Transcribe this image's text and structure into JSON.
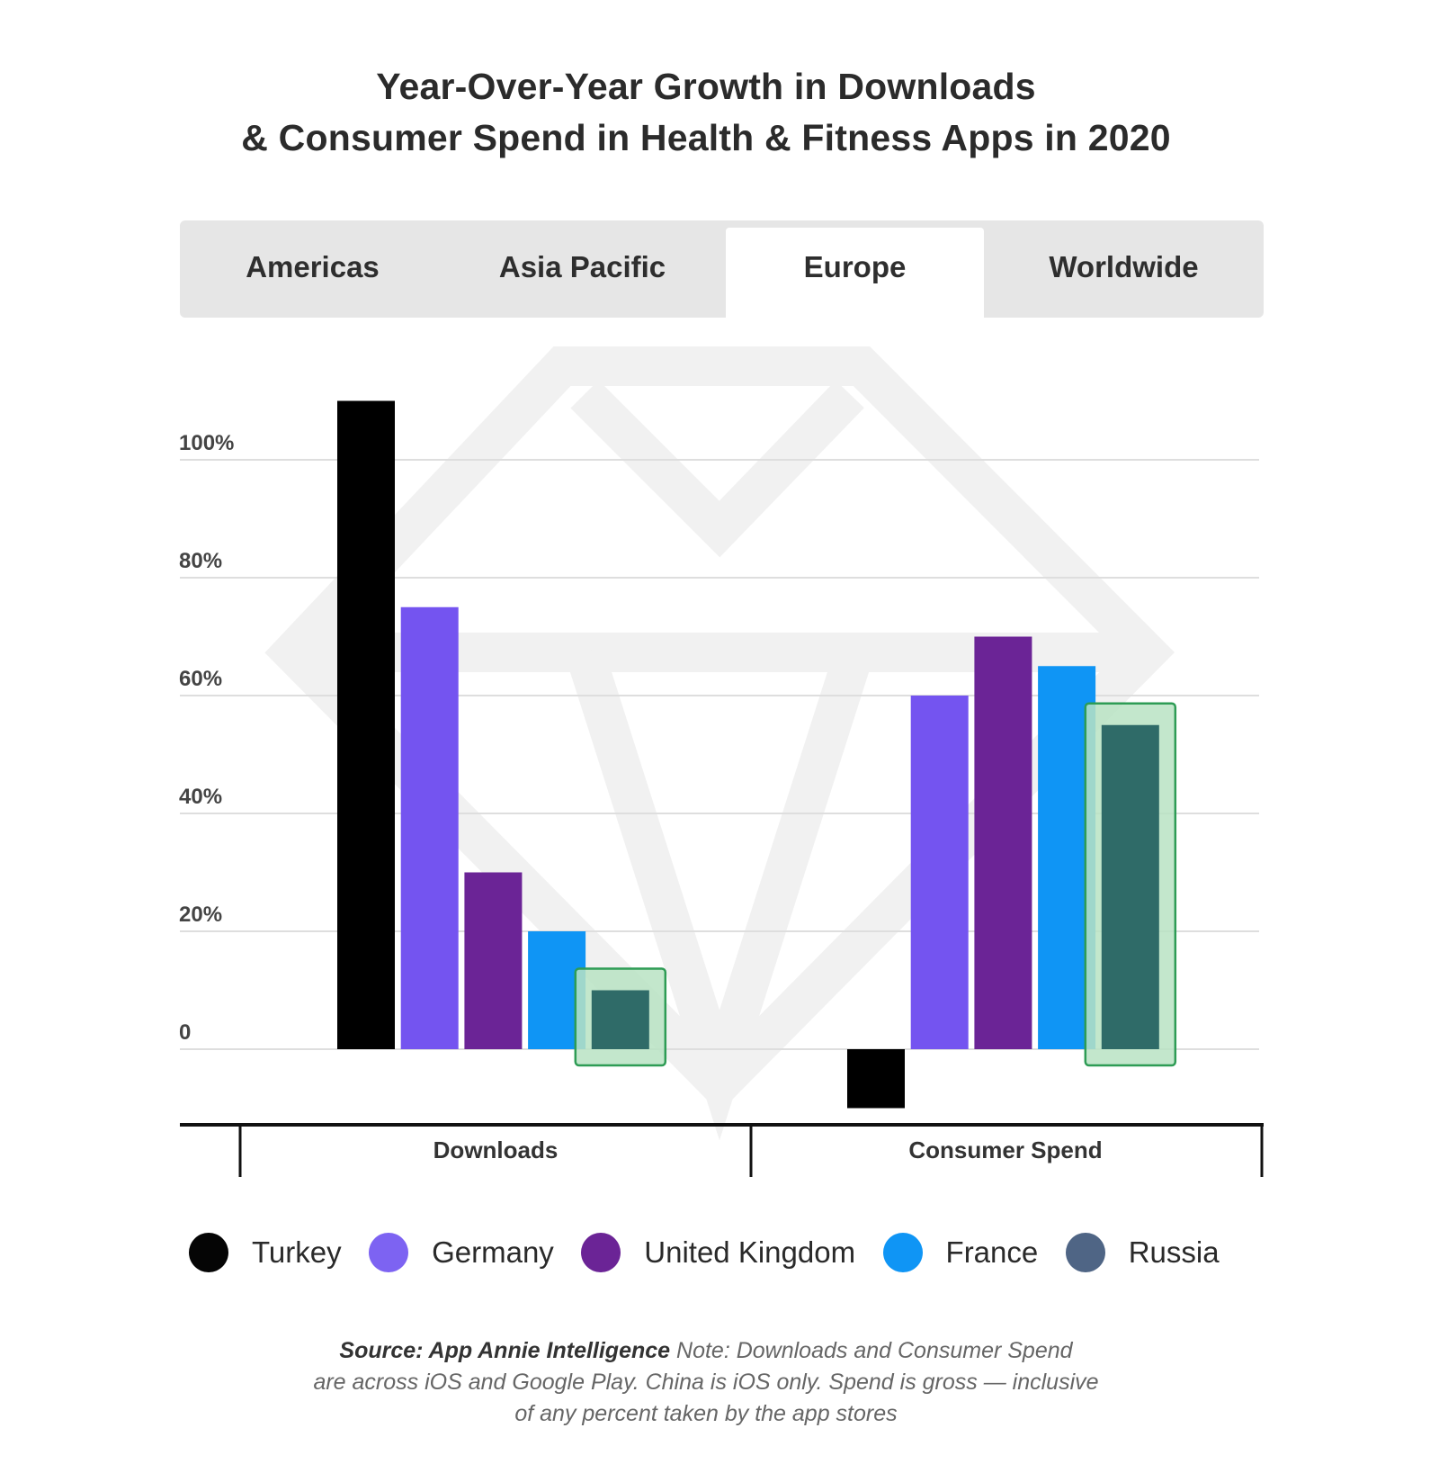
{
  "title_lines": [
    "Year-Over-Year Growth in Downloads",
    "& Consumer Spend in Health & Fitness Apps in 2020"
  ],
  "tabs": [
    {
      "label": "Americas",
      "active": false
    },
    {
      "label": "Asia Pacific",
      "active": false
    },
    {
      "label": "Europe",
      "active": true
    },
    {
      "label": "Worldwide",
      "active": false
    }
  ],
  "chart_data": {
    "type": "bar",
    "title": "Year-Over-Year Growth in Downloads & Consumer Spend in Health & Fitness Apps in 2020",
    "categories": [
      "Downloads",
      "Consumer Spend"
    ],
    "series": [
      {
        "name": "Turkey",
        "color": "#000000",
        "values": [
          110,
          -10
        ]
      },
      {
        "name": "Germany",
        "color": "#7454f0",
        "values": [
          75,
          60
        ]
      },
      {
        "name": "United Kingdom",
        "color": "#6b2496",
        "values": [
          30,
          70
        ]
      },
      {
        "name": "France",
        "color": "#0f95f5",
        "values": [
          20,
          65
        ]
      },
      {
        "name": "Russia",
        "color": "#2f6b68",
        "values": [
          10,
          55
        ]
      }
    ],
    "highlighted_series": "Russia",
    "y_ticks": [
      0,
      20,
      40,
      60,
      80,
      100
    ],
    "y_tick_labels": [
      "0",
      "20%",
      "40%",
      "60%",
      "80%",
      "100%"
    ],
    "ylim": [
      -12,
      112
    ],
    "grid": true,
    "xlabel": "",
    "ylabel": ""
  },
  "legend": [
    {
      "label": "Turkey",
      "color": "#050505"
    },
    {
      "label": "Germany",
      "color": "#7d63f2"
    },
    {
      "label": "United Kingdom",
      "color": "#6b2496"
    },
    {
      "label": "France",
      "color": "#0f95f5"
    },
    {
      "label": "Russia",
      "color": "#4f6585"
    }
  ],
  "note": {
    "source_label": "Source: App Annie Intelligence",
    "line1_rest": " Note: Downloads and Consumer Spend",
    "line2": "are across iOS and Google Play. China is iOS only. Spend is gross — inclusive",
    "line3": "of any percent taken by the app stores"
  }
}
